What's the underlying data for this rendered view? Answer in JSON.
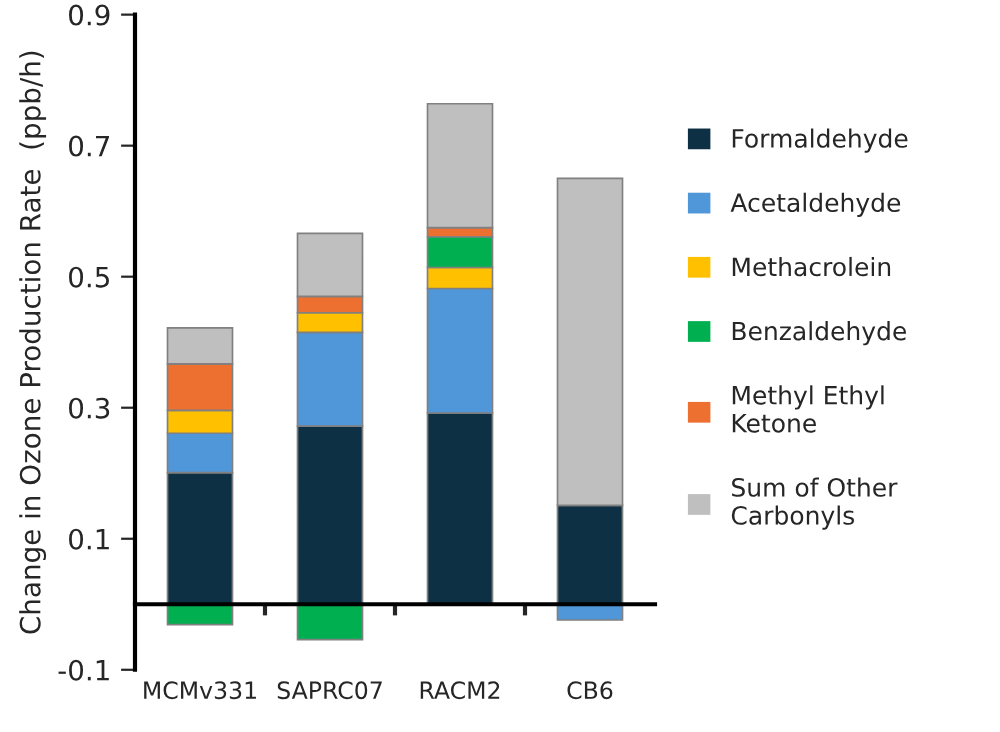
{
  "chart_data": {
    "type": "bar",
    "stacked": true,
    "ylabel": "Change in Ozone Production Rate  (ppb/h)",
    "categories": [
      "MCMv331",
      "SAPRC07",
      "RACM2",
      "CB6"
    ],
    "series": [
      {
        "name": "Formaldehyde",
        "color": "#0e3044",
        "values": [
          0.201,
          0.272,
          0.292,
          0.151
        ]
      },
      {
        "name": "Acetaldehyde",
        "color": "#4f97d8",
        "values": [
          0.06,
          0.143,
          0.19,
          -0.024
        ]
      },
      {
        "name": "Methacrolein",
        "color": "#ffc000",
        "values": [
          0.035,
          0.03,
          0.032,
          null
        ]
      },
      {
        "name": "Benzaldehyde",
        "color": "#00b050",
        "values": [
          -0.031,
          -0.054,
          0.047,
          null
        ]
      },
      {
        "name": "Methyl Ethyl\nKetone",
        "color": "#ed7031",
        "values": [
          0.071,
          0.025,
          0.014,
          null
        ]
      },
      {
        "name": "Sum of Other\nCarbonyls",
        "color": "#bfbfbf",
        "values": [
          0.055,
          0.096,
          0.189,
          0.499
        ]
      }
    ],
    "ylim": [
      -0.1,
      0.9
    ],
    "yticks": [
      -0.1,
      0.1,
      0.3,
      0.5,
      0.7,
      0.9
    ],
    "grid": false,
    "legend": "right"
  }
}
